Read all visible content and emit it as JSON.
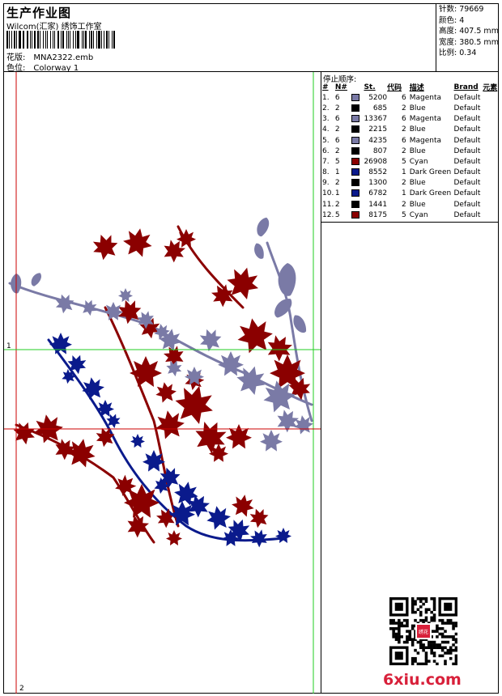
{
  "header": {
    "title": "生产作业图",
    "company": "Wilcom(汇家) 绣饰工作室",
    "design_label": "花版:",
    "design_value": "MNA2322.emb",
    "colorway_label": "色位:",
    "colorway_value": "Colorway 1"
  },
  "stats": {
    "stitches": "针数: 79669",
    "colors": "颜色: 4",
    "height": "高度: 407.5 mm",
    "width": "宽度: 380.5 mm",
    "scale": "比例: 0.34"
  },
  "sequence": {
    "title": "停止顺序:",
    "headers": [
      "#",
      "N#",
      "St.",
      "代码",
      "描述",
      "Brand",
      "元素"
    ],
    "rows": [
      {
        "n": "1.",
        "nn": "6",
        "color": "#7a7aa6",
        "st": "5200",
        "code": "6",
        "desc": "Magenta",
        "brand": "Default"
      },
      {
        "n": "2.",
        "nn": "2",
        "color": "#000000",
        "st": "685",
        "code": "2",
        "desc": "Blue",
        "brand": "Default"
      },
      {
        "n": "3.",
        "nn": "6",
        "color": "#7a7aa6",
        "st": "13367",
        "code": "6",
        "desc": "Magenta",
        "brand": "Default"
      },
      {
        "n": "4.",
        "nn": "2",
        "color": "#000000",
        "st": "2215",
        "code": "2",
        "desc": "Blue",
        "brand": "Default"
      },
      {
        "n": "5.",
        "nn": "6",
        "color": "#7a7aa6",
        "st": "4235",
        "code": "6",
        "desc": "Magenta",
        "brand": "Default"
      },
      {
        "n": "6.",
        "nn": "2",
        "color": "#000000",
        "st": "807",
        "code": "2",
        "desc": "Blue",
        "brand": "Default"
      },
      {
        "n": "7.",
        "nn": "5",
        "color": "#8b0000",
        "st": "26908",
        "code": "5",
        "desc": "Cyan",
        "brand": "Default"
      },
      {
        "n": "8.",
        "nn": "1",
        "color": "#0a1a8c",
        "st": "8552",
        "code": "1",
        "desc": "Dark Green",
        "brand": "Default"
      },
      {
        "n": "9.",
        "nn": "2",
        "color": "#000000",
        "st": "1300",
        "code": "2",
        "desc": "Blue",
        "brand": "Default"
      },
      {
        "n": "10.",
        "nn": "1",
        "color": "#0a1a8c",
        "st": "6782",
        "code": "1",
        "desc": "Dark Green",
        "brand": "Default"
      },
      {
        "n": "11.",
        "nn": "2",
        "color": "#000000",
        "st": "1441",
        "code": "2",
        "desc": "Blue",
        "brand": "Default"
      },
      {
        "n": "12.",
        "nn": "5",
        "color": "#8b0000",
        "st": "8175",
        "code": "5",
        "desc": "Cyan",
        "brand": "Default"
      }
    ]
  },
  "guides": {
    "h1": "1",
    "v2": "2"
  },
  "watermark": {
    "site": "6xiu.com",
    "stamp": "绣花"
  },
  "colors": {
    "magenta": "#7a7aa6",
    "blue": "#0a1a8c",
    "red": "#8b0000",
    "guide_green": "#22cc22",
    "guide_red": "#cc0000"
  }
}
